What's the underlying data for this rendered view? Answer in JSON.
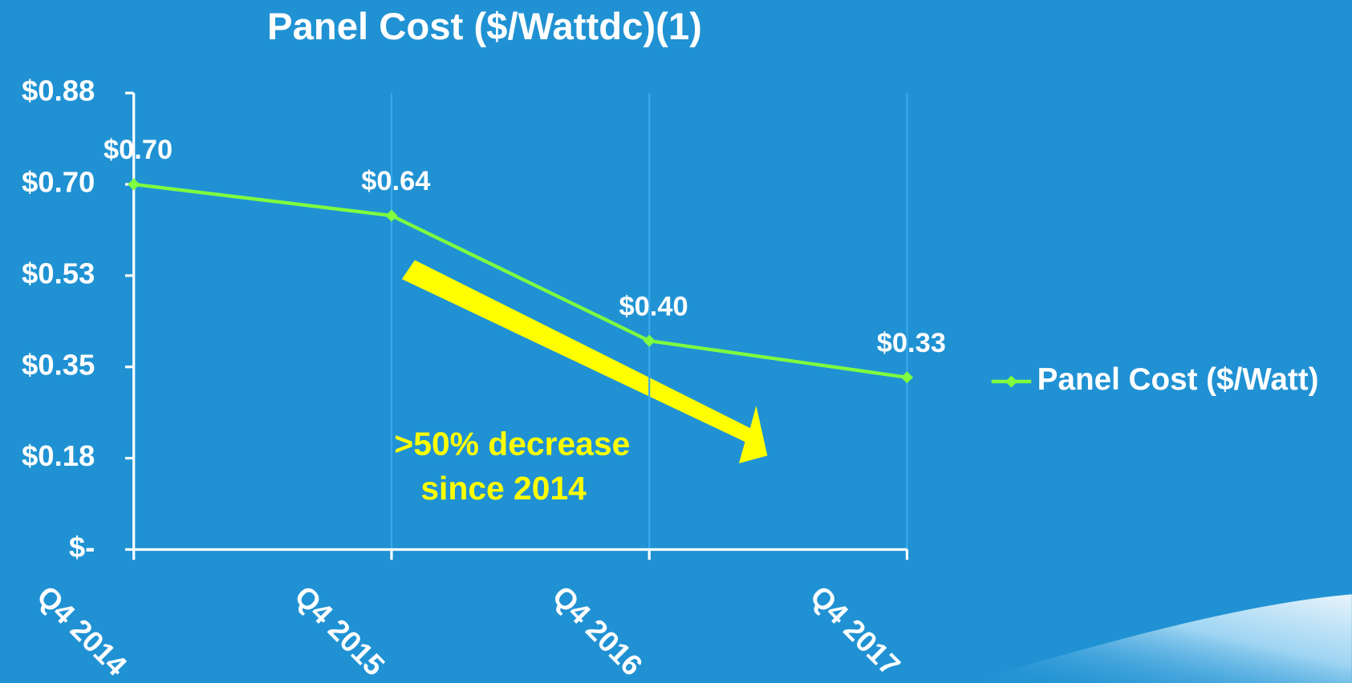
{
  "chart_data": {
    "type": "line",
    "title": "Panel Cost ($/Wattdc)(1)",
    "categories": [
      "Q4 2014",
      "Q4 2015",
      "Q4 2016",
      "Q4 2017"
    ],
    "series": [
      {
        "name": "Panel Cost ($/Watt)",
        "color": "#7fff3f",
        "values": [
          0.7,
          0.64,
          0.4,
          0.33
        ],
        "value_labels": [
          "$0.70",
          "$0.64",
          "$0.40",
          "$0.33"
        ]
      }
    ],
    "ylim": [
      0,
      0.875
    ],
    "yticks": [
      {
        "value": 0,
        "label": "$-"
      },
      {
        "value": 0.175,
        "label": "$0.18"
      },
      {
        "value": 0.35,
        "label": "$0.35"
      },
      {
        "value": 0.525,
        "label": "$0.53"
      },
      {
        "value": 0.7,
        "label": "$0.70"
      },
      {
        "value": 0.875,
        "label": "$0.88"
      }
    ],
    "grid": "x",
    "legend": "right",
    "annotation": [
      ">50% decrease",
      "since 2014"
    ]
  }
}
